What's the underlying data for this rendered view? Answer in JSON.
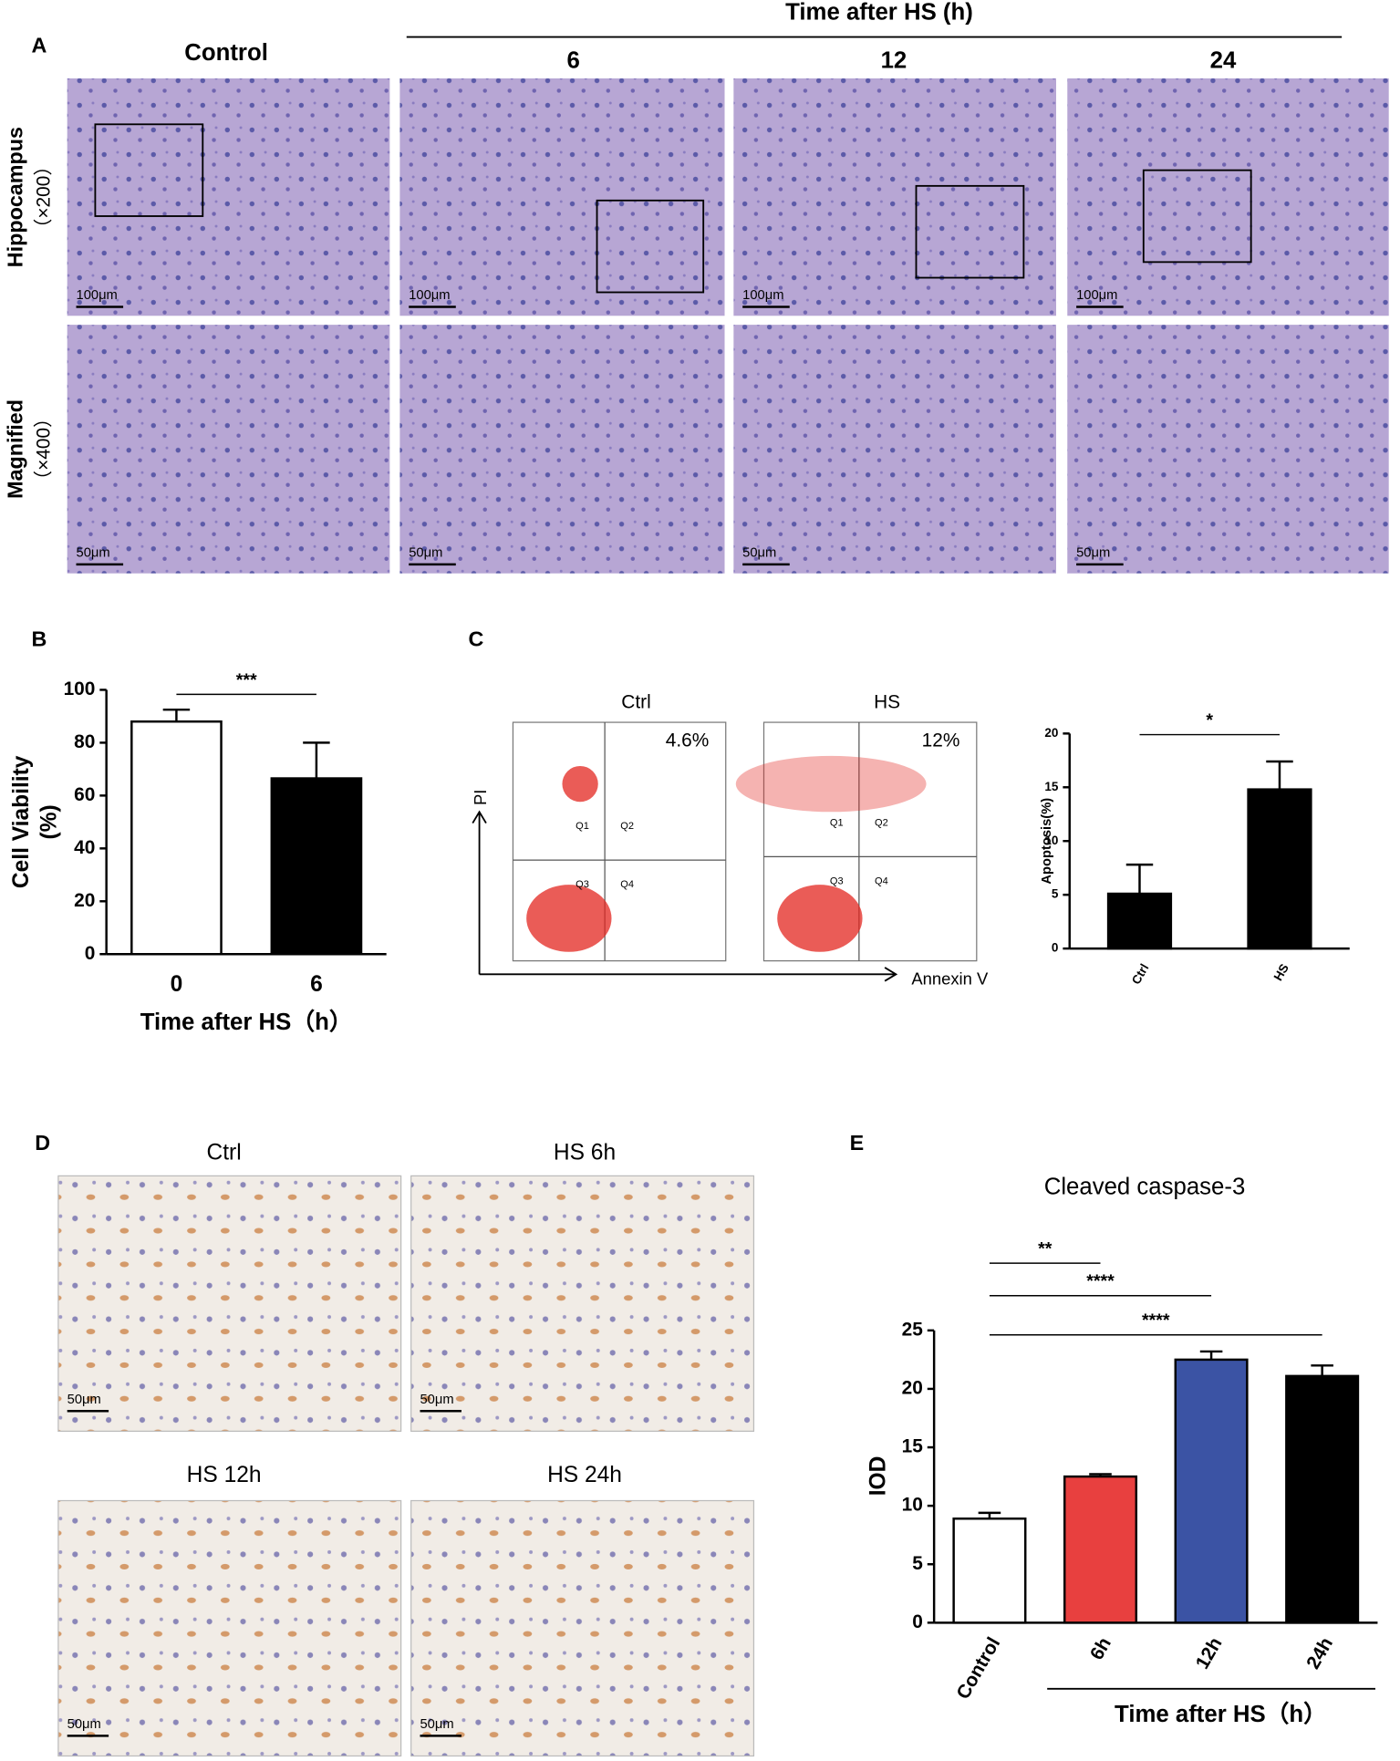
{
  "letters": [
    "A",
    "B",
    "C",
    "D",
    "E"
  ],
  "panel_a": {
    "columns": [
      "Control",
      "6",
      "12",
      "24"
    ],
    "group_label": "Time after HS (h)",
    "rows": [
      {
        "label": "Hippocampus",
        "magnification": "（×200）",
        "scale_bar": "100μm"
      },
      {
        "label": "Magnified",
        "magnification": "（×400）",
        "scale_bar": "50μm"
      }
    ]
  },
  "flow": {
    "samples": [
      {
        "name": "Ctrl",
        "percent": "4.6%"
      },
      {
        "name": "HS",
        "percent": "12%"
      }
    ],
    "quadrants": [
      "Q1",
      "Q2",
      "Q3",
      "Q4"
    ],
    "y_axis": "PI",
    "x_axis": "Annexin V"
  },
  "panel_d": {
    "images": [
      "Ctrl",
      "HS 6h",
      "HS 12h",
      "HS 24h"
    ],
    "scale_bar": "50μm"
  },
  "chart_data": [
    {
      "type": "bar",
      "ylabel": [
        "Cell Viability",
        "(%)"
      ],
      "xlabel": "Time after HS（h）",
      "categories": [
        "0",
        "6"
      ],
      "values": [
        88,
        66.5
      ],
      "errors": [
        4.5,
        13.5
      ],
      "colors": [
        "#ffffff",
        "#000000"
      ],
      "ylim": [
        0,
        100
      ],
      "yticks": [
        0,
        20,
        40,
        60,
        80,
        100
      ],
      "comparisons": [
        {
          "between": [
            "0",
            "6"
          ],
          "label": "***"
        }
      ]
    },
    {
      "type": "bar",
      "ylabel": [
        "Apoptosis(%)"
      ],
      "categories": [
        "Ctrl",
        "HS"
      ],
      "values": [
        5.1,
        14.8
      ],
      "errors": [
        2.7,
        2.6
      ],
      "colors": [
        "#000000",
        "#000000"
      ],
      "ylim": [
        0,
        20
      ],
      "yticks": [
        0,
        5,
        10,
        15,
        20
      ],
      "comparisons": [
        {
          "between": [
            "Ctrl",
            "HS"
          ],
          "label": "*"
        }
      ]
    },
    {
      "type": "bar",
      "title": "Cleaved caspase-3",
      "ylabel": [
        "IOD"
      ],
      "xlabel": "Time after HS（h）",
      "categories": [
        "Control",
        "6h",
        "12h",
        "24h"
      ],
      "values": [
        8.9,
        12.5,
        22.5,
        21.1
      ],
      "errors": [
        0.5,
        0.2,
        0.7,
        0.9
      ],
      "colors": [
        "#ffffff",
        "#e8403f",
        "#3b53a4",
        "#000000"
      ],
      "ylim": [
        0,
        25
      ],
      "yticks": [
        0,
        5,
        10,
        15,
        20,
        25
      ],
      "comparisons": [
        {
          "between": [
            "Control",
            "6h"
          ],
          "label": "**"
        },
        {
          "between": [
            "Control",
            "12h"
          ],
          "label": "****"
        },
        {
          "between": [
            "Control",
            "24h"
          ],
          "label": "****"
        }
      ]
    }
  ]
}
